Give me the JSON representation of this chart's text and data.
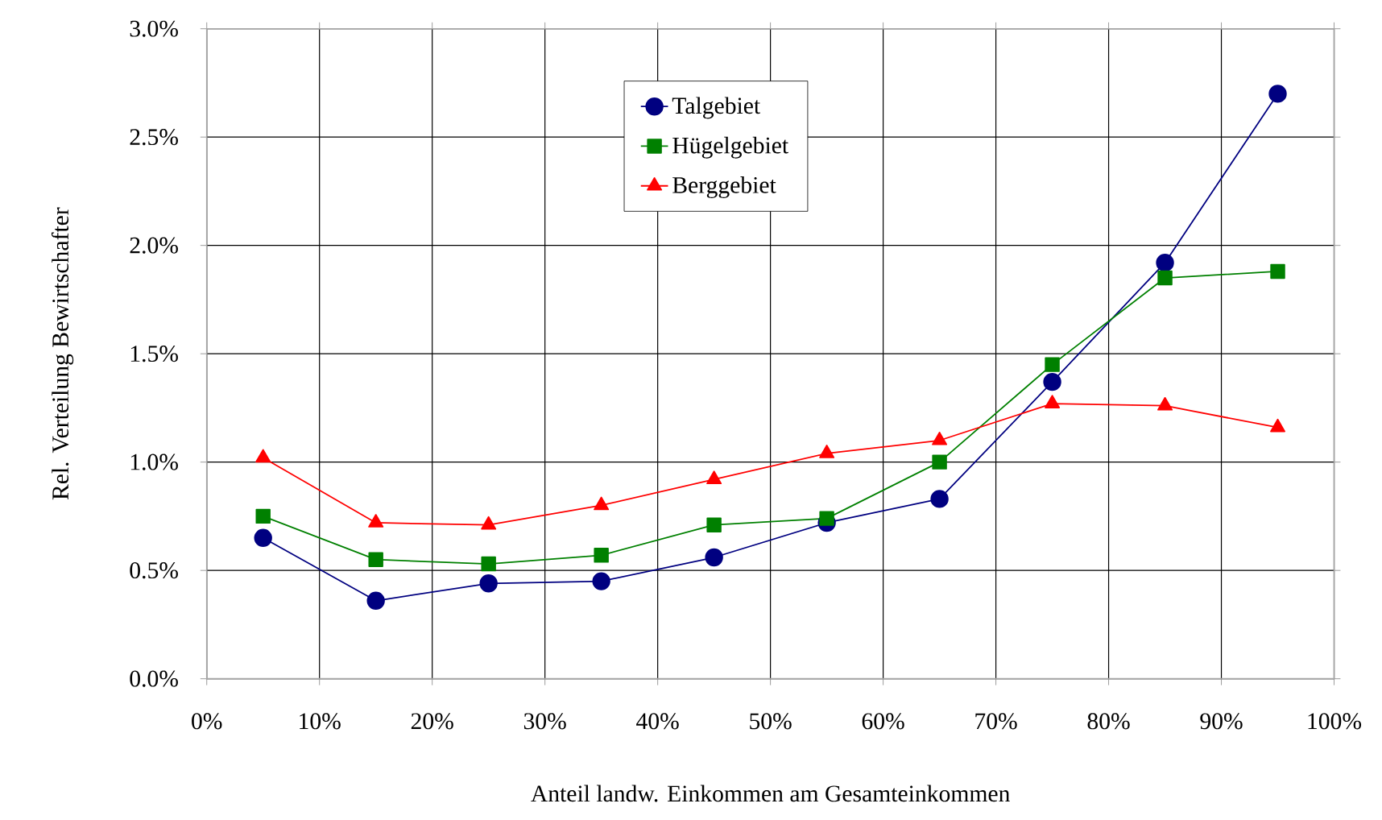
{
  "chart_data": {
    "type": "line",
    "xlabel": "Anteil landw. Einkommen am Gesamteinkommen",
    "ylabel": "Rel. Verteilung Bewirtschafter",
    "x": [
      5,
      15,
      25,
      35,
      45,
      55,
      65,
      75,
      85,
      95
    ],
    "series": [
      {
        "name": "Talgebiet",
        "color": "#000080",
        "marker": "circle",
        "values": [
          0.65,
          0.36,
          0.44,
          0.45,
          0.56,
          0.72,
          0.83,
          1.37,
          1.92,
          2.7
        ]
      },
      {
        "name": "Hügelgebiet",
        "color": "#008000",
        "marker": "square",
        "values": [
          0.75,
          0.55,
          0.53,
          0.57,
          0.71,
          0.74,
          1.0,
          1.45,
          1.85,
          1.88
        ]
      },
      {
        "name": "Berggebiet",
        "color": "#ff0000",
        "marker": "triangle",
        "values": [
          1.02,
          0.72,
          0.71,
          0.8,
          0.92,
          1.04,
          1.1,
          1.27,
          1.26,
          1.16
        ]
      }
    ],
    "xlim": [
      0,
      100
    ],
    "xticks": [
      {
        "value": 0,
        "label": "0%"
      },
      {
        "value": 10,
        "label": "10%"
      },
      {
        "value": 20,
        "label": "20%"
      },
      {
        "value": 30,
        "label": "30%"
      },
      {
        "value": 40,
        "label": "40%"
      },
      {
        "value": 50,
        "label": "50%"
      },
      {
        "value": 60,
        "label": "60%"
      },
      {
        "value": 70,
        "label": "70%"
      },
      {
        "value": 80,
        "label": "80%"
      },
      {
        "value": 90,
        "label": "90%"
      },
      {
        "value": 100,
        "label": "100%"
      }
    ],
    "ylim": [
      0,
      3
    ],
    "yticks": [
      {
        "value": 0,
        "label": "0.0%"
      },
      {
        "value": 0.5,
        "label": "0.5%"
      },
      {
        "value": 1,
        "label": "1.0%"
      },
      {
        "value": 1.5,
        "label": "1.5%"
      },
      {
        "value": 2,
        "label": "2.0%"
      },
      {
        "value": 2.5,
        "label": "2.5%"
      },
      {
        "value": 3,
        "label": "3.0%"
      }
    ],
    "grid": true,
    "legend": "top",
    "line_style": "solid"
  }
}
